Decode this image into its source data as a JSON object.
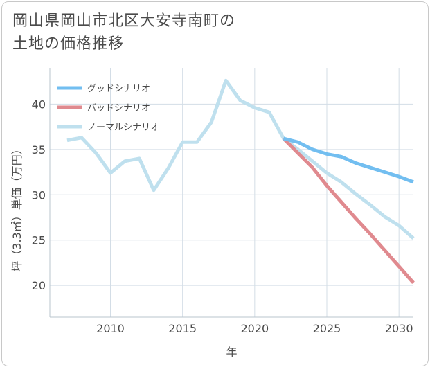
{
  "title_lines": [
    "岡山県岡山市北区大安寺南町の",
    "土地の価格推移"
  ],
  "chart_data": {
    "type": "line",
    "title": "岡山県岡山市北区大安寺南町の土地の価格推移",
    "xlabel": "年",
    "ylabel": "坪（3.3㎡）単価（万円）",
    "xlim": [
      2005.8,
      2031
    ],
    "ylim": [
      16.5,
      44
    ],
    "xticks": [
      2010,
      2015,
      2020,
      2025,
      2030
    ],
    "yticks": [
      20,
      25,
      30,
      35,
      40
    ],
    "grid": true,
    "legend_position": "top-left",
    "series": [
      {
        "name": "グッドシナリオ",
        "color": "#72bef0",
        "x": [
          2022,
          2023,
          2024,
          2025,
          2026,
          2027,
          2028,
          2029,
          2030,
          2031
        ],
        "values": [
          36.2,
          35.8,
          35.0,
          34.5,
          34.2,
          33.5,
          33.0,
          32.5,
          32.0,
          31.4
        ]
      },
      {
        "name": "バッドシナリオ",
        "color": "#e08a8f",
        "x": [
          2022,
          2023,
          2024,
          2025,
          2026,
          2027,
          2028,
          2029,
          2030,
          2031
        ],
        "values": [
          36.2,
          34.6,
          33.0,
          31.0,
          29.2,
          27.4,
          25.7,
          23.9,
          22.1,
          20.3
        ]
      },
      {
        "name": "ノーマルシナリオ",
        "color": "#bfe0ee",
        "x": [
          2007,
          2008,
          2009,
          2010,
          2011,
          2012,
          2013,
          2014,
          2015,
          2016,
          2017,
          2018,
          2019,
          2020,
          2021,
          2022,
          2023,
          2024,
          2025,
          2026,
          2027,
          2028,
          2029,
          2030,
          2031
        ],
        "values": [
          36.0,
          36.3,
          34.6,
          32.4,
          33.7,
          34.0,
          30.5,
          32.9,
          35.8,
          35.8,
          38.0,
          42.6,
          40.4,
          39.6,
          39.1,
          36.2,
          35.0,
          33.7,
          32.4,
          31.4,
          30.1,
          28.9,
          27.6,
          26.6,
          25.2
        ]
      }
    ]
  }
}
